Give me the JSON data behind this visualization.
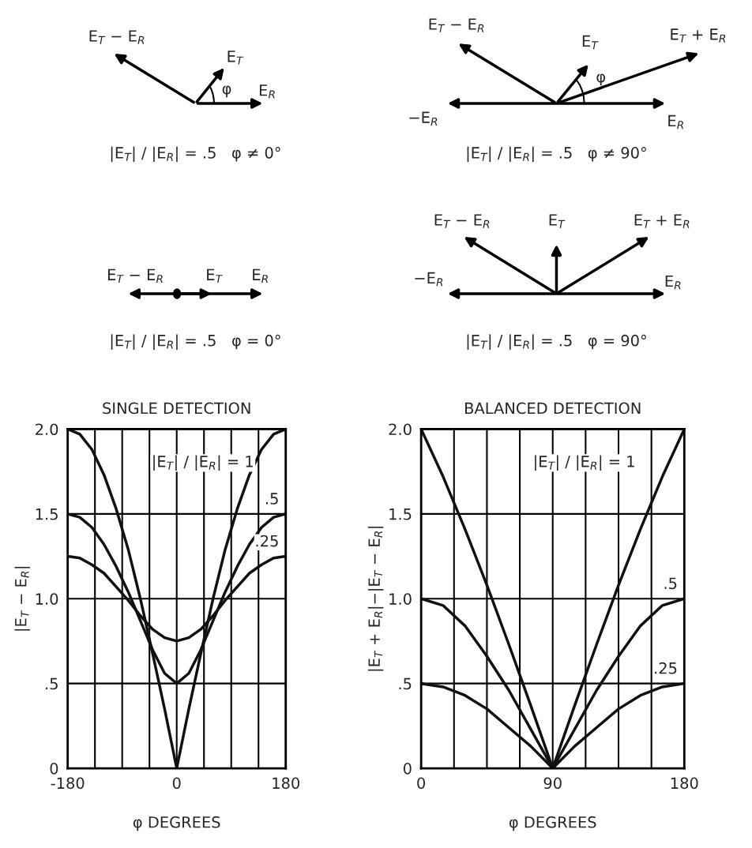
{
  "chart_data": [
    {
      "type": "other",
      "title": "|E$_{T}$| / |E$_{R}$| = .5   φ ≠ 0°",
      "annotations": [
        "E$_{T}$ − E$_{R}$",
        "E$_{T}$",
        "φ",
        "E$_{R}$"
      ]
    },
    {
      "type": "other",
      "title": "|E$_{T}$| / |E$_{R}$| = .5   φ ≠ 90°",
      "annotations": [
        "E$_{T}$ − E$_{R}$",
        "E$_{T}$",
        "E$_{T}$ + E$_{R}$",
        "−E$_{R}$",
        "φ",
        "E$_{R}$"
      ]
    },
    {
      "type": "other",
      "title": "|E$_{T}$| / |E$_{R}$| = .5   φ = 0°",
      "annotations": [
        "E$_{T}$ − E$_{R}$",
        "E$_{T}$",
        "E$_{R}$"
      ]
    },
    {
      "type": "other",
      "title": "|E$_{T}$| / |E$_{R}$| = .5   φ = 90°",
      "annotations": [
        "E$_{T}$ − E$_{R}$",
        "E$_{T}$",
        "E$_{T}$ + E$_{R}$",
        "−E$_{R}$",
        "E$_{R}$"
      ]
    },
    {
      "type": "line",
      "title": "SINGLE DETECTION",
      "xlabel": "φ DEGREES",
      "ylabel": "|E$_{T}$ − E$_{R}$|",
      "x": [
        -180,
        -160,
        -140,
        -120,
        -100,
        -80,
        -60,
        -40,
        -20,
        0,
        20,
        40,
        60,
        80,
        100,
        120,
        140,
        160,
        180
      ],
      "series": [
        {
          "color": "#111111",
          "values": [
            2.0,
            1.97,
            1.88,
            1.73,
            1.53,
            1.29,
            1.0,
            0.68,
            0.35,
            0.0,
            0.35,
            0.68,
            1.0,
            1.29,
            1.53,
            1.73,
            1.88,
            1.97,
            2.0
          ]
        },
        {
          "color": "#111111",
          "values": [
            1.5,
            1.48,
            1.42,
            1.32,
            1.19,
            1.04,
            0.87,
            0.7,
            0.56,
            0.5,
            0.56,
            0.7,
            0.87,
            1.04,
            1.19,
            1.32,
            1.42,
            1.48,
            1.5
          ]
        },
        {
          "color": "#111111",
          "values": [
            1.25,
            1.24,
            1.2,
            1.15,
            1.07,
            0.99,
            0.9,
            0.82,
            0.77,
            0.75,
            0.77,
            0.82,
            0.9,
            0.99,
            1.07,
            1.15,
            1.2,
            1.24,
            1.25
          ]
        }
      ],
      "xlim": [
        -180,
        180
      ],
      "xticks": [
        -180,
        {
          "value": -135,
          "label": null
        },
        {
          "value": -90,
          "label": null
        },
        {
          "value": -45,
          "label": null
        },
        0,
        {
          "value": 45,
          "label": null
        },
        {
          "value": 90,
          "label": null
        },
        {
          "value": 135,
          "label": null
        },
        180
      ],
      "ylim": [
        0,
        2
      ],
      "yticks": [
        0,
        {
          "value": 0.5,
          "label": ".5"
        },
        {
          "value": 1,
          "label": "1.0"
        },
        {
          "value": 1.5,
          "label": "1.5"
        },
        {
          "value": 2,
          "label": "2.0"
        }
      ],
      "grid": true,
      "legend": false,
      "annotations": [
        "|E$_{T}$| / |E$_{R}$| = 1",
        ".5",
        ".25"
      ]
    },
    {
      "type": "line",
      "title": "BALANCED DETECTION",
      "xlabel": "φ DEGREES",
      "ylabel": "|E$_{T}$ + E$_{R}$|−|E$_{T}$ − E$_{R}$|",
      "x": [
        0,
        15,
        30,
        45,
        60,
        75,
        90,
        105,
        120,
        135,
        150,
        165,
        180
      ],
      "series": [
        {
          "color": "#111111",
          "values": [
            2.0,
            1.72,
            1.41,
            1.08,
            0.73,
            0.37,
            0.0,
            0.37,
            0.73,
            1.08,
            1.41,
            1.72,
            2.0
          ]
        },
        {
          "color": "#111111",
          "values": [
            1.0,
            0.96,
            0.84,
            0.66,
            0.46,
            0.23,
            0.0,
            0.23,
            0.46,
            0.66,
            0.84,
            0.96,
            1.0
          ]
        },
        {
          "color": "#111111",
          "values": [
            0.5,
            0.48,
            0.43,
            0.35,
            0.24,
            0.13,
            0.0,
            0.13,
            0.24,
            0.35,
            0.43,
            0.48,
            0.5
          ]
        }
      ],
      "xlim": [
        0,
        180
      ],
      "xticks": [
        0,
        {
          "value": 22.5,
          "label": null
        },
        {
          "value": 45,
          "label": null
        },
        {
          "value": 67.5,
          "label": null
        },
        90,
        {
          "value": 112.5,
          "label": null
        },
        {
          "value": 135,
          "label": null
        },
        {
          "value": 157.5,
          "label": null
        },
        180
      ],
      "ylim": [
        0,
        2
      ],
      "yticks": [
        0,
        {
          "value": 0.5,
          "label": ".5"
        },
        {
          "value": 1,
          "label": "1.0"
        },
        {
          "value": 1.5,
          "label": "1.5"
        },
        {
          "value": 2,
          "label": "2.0"
        }
      ],
      "grid": true,
      "legend": false,
      "annotations": [
        "|E$_{T}$| / |E$_{R}$| = 1",
        ".5",
        ".25"
      ]
    }
  ]
}
